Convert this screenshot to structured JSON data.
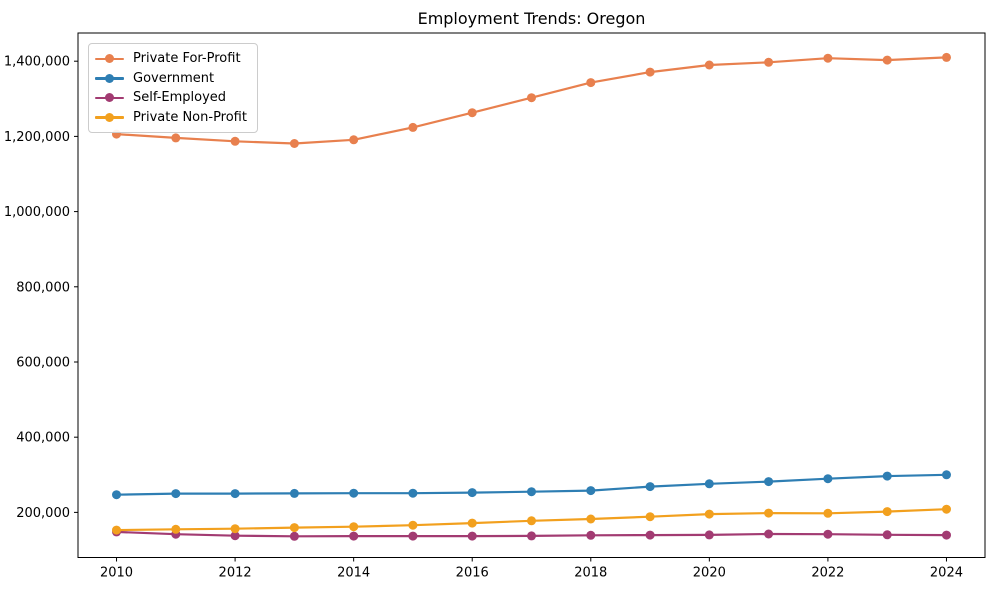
{
  "title": "Employment Trends: Oregon",
  "chart_data": {
    "type": "line",
    "title": "Employment Trends: Oregon",
    "xlabel": "",
    "ylabel": "",
    "x": [
      2010,
      2011,
      2012,
      2013,
      2014,
      2015,
      2016,
      2017,
      2018,
      2019,
      2020,
      2021,
      2022,
      2023,
      2024
    ],
    "series": [
      {
        "name": "Private For-Profit",
        "color": "#E8804E",
        "values": [
          1206000,
          1196000,
          1187000,
          1181000,
          1191000,
          1224000,
          1263000,
          1303000,
          1343000,
          1371000,
          1390000,
          1397000,
          1408000,
          1403000,
          1410000
        ]
      },
      {
        "name": "Government",
        "color": "#2E7EB3",
        "values": [
          247000,
          250000,
          250000,
          250500,
          251000,
          251000,
          252500,
          255000,
          258000,
          268500,
          276000,
          282000,
          289500,
          296500,
          300000
        ]
      },
      {
        "name": "Self-Employed",
        "color": "#A23B72",
        "values": [
          148000,
          142000,
          138000,
          136500,
          137000,
          137000,
          137000,
          137500,
          139000,
          139500,
          140000,
          142500,
          142000,
          140500,
          139500
        ]
      },
      {
        "name": "Private Non-Profit",
        "color": "#F2A01E",
        "values": [
          153000,
          155000,
          156500,
          159500,
          162000,
          166000,
          171500,
          177500,
          182500,
          188500,
          195500,
          198000,
          197500,
          202000,
          208500
        ]
      }
    ],
    "xticks": [
      2010,
      2012,
      2014,
      2016,
      2018,
      2020,
      2022,
      2024
    ],
    "xtick_labels": [
      "2010",
      "2012",
      "2014",
      "2016",
      "2018",
      "2020",
      "2022",
      "2024"
    ],
    "yticks": [
      200000,
      400000,
      600000,
      800000,
      1000000,
      1200000,
      1400000
    ],
    "ytick_labels": [
      "200,000",
      "400,000",
      "600,000",
      "800,000",
      "1,000,000",
      "1,200,000",
      "1,400,000"
    ],
    "xlim": [
      2009.35,
      2024.65
    ],
    "ylim": [
      80000,
      1475000
    ],
    "grid": false,
    "legend_position": "upper left",
    "marker": "circle"
  }
}
